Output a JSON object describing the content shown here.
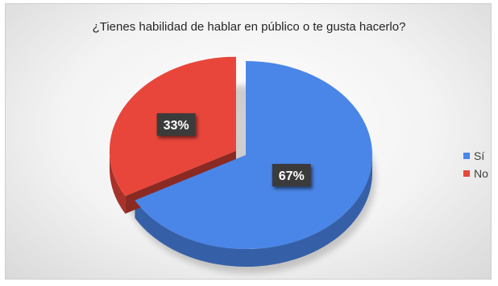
{
  "chart_data": {
    "type": "pie",
    "title": "¿Tienes habilidad de hablar en público o te gusta hacerlo?",
    "categories": [
      "Sí",
      "No"
    ],
    "values": [
      67,
      33
    ],
    "data_labels": [
      "67%",
      "33%"
    ],
    "colors": [
      "#4a86e8",
      "#e8463a"
    ],
    "style": "3d-exploded",
    "legend_position": "right"
  }
}
